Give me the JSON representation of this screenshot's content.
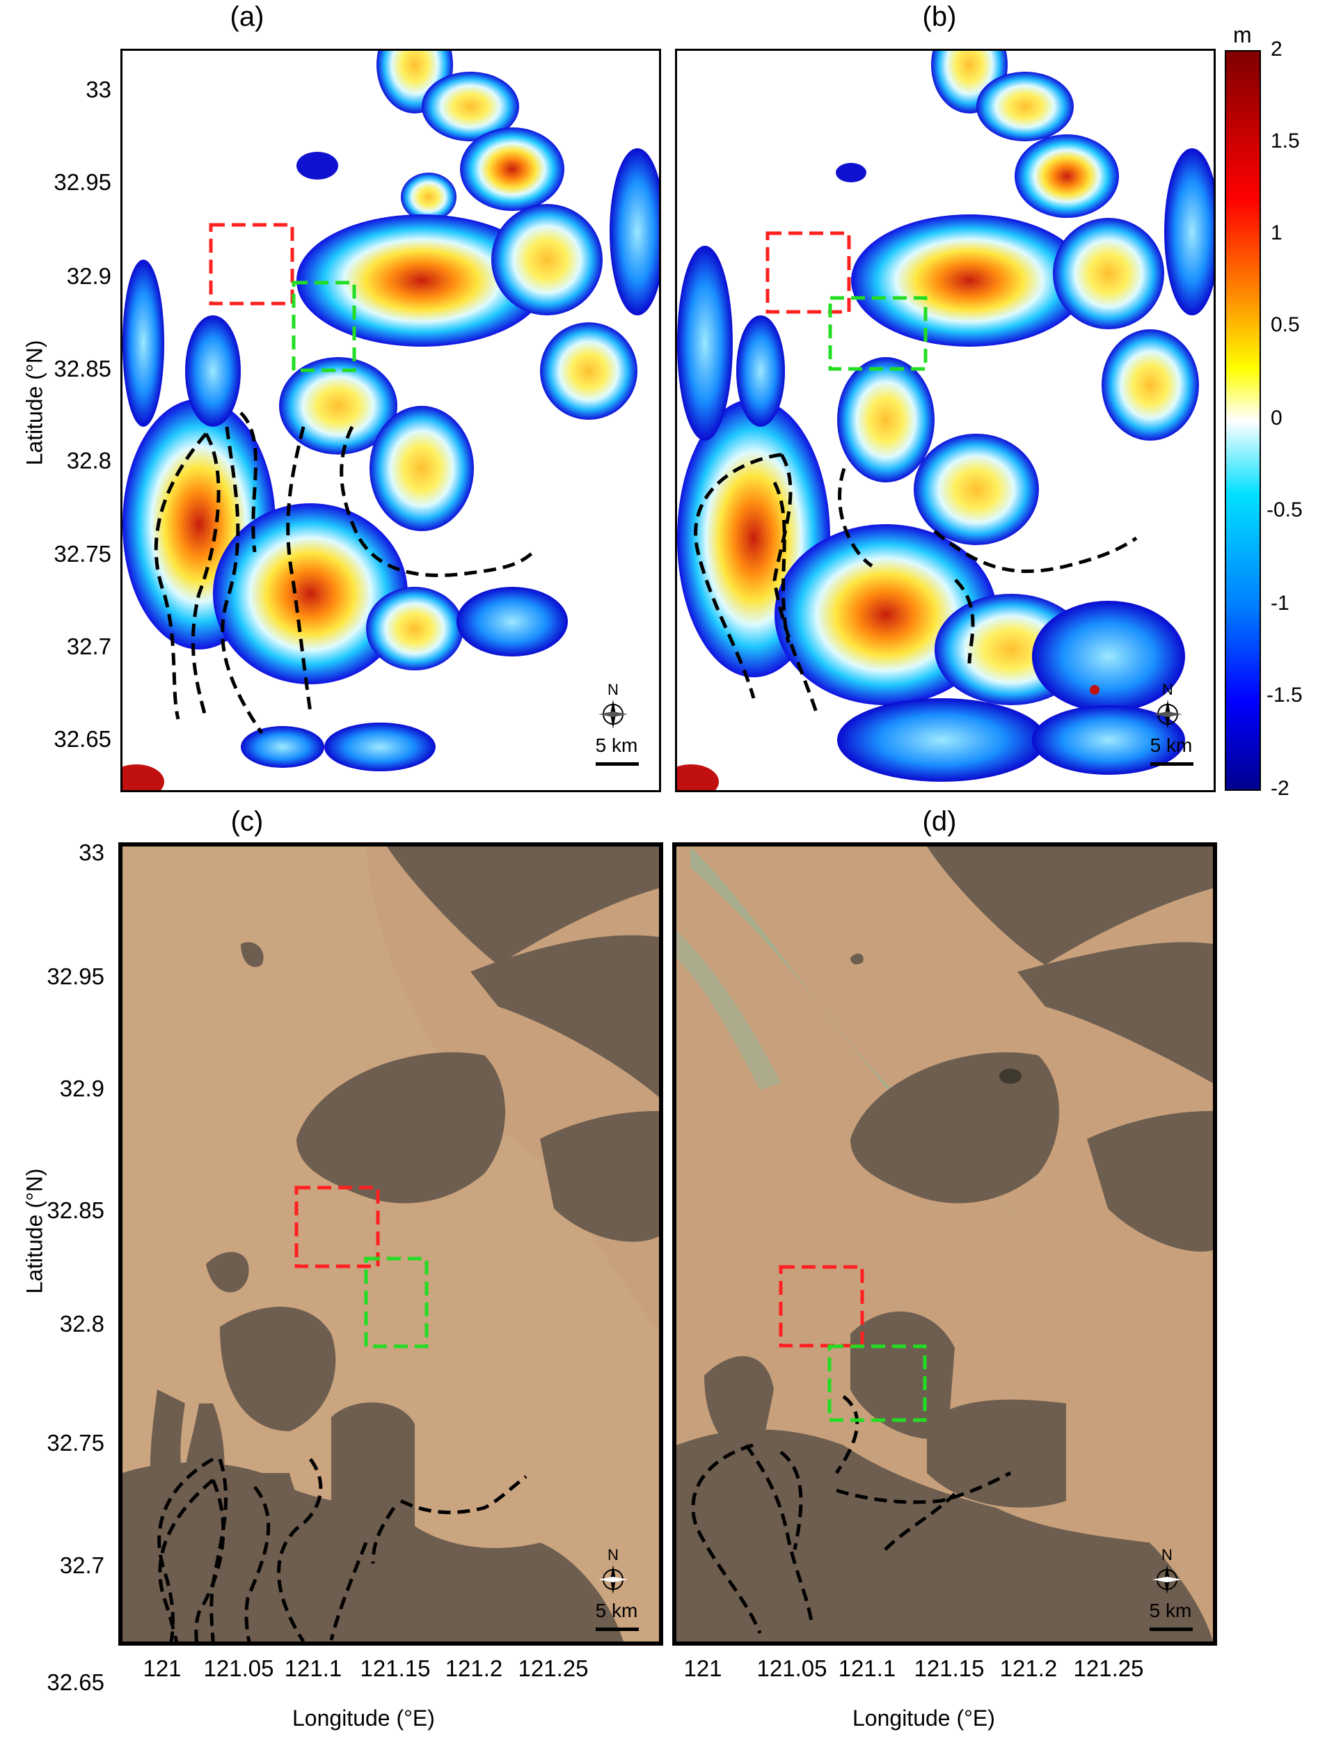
{
  "panels": [
    {
      "id": "a",
      "label": "(a)"
    },
    {
      "id": "b",
      "label": "(b)"
    },
    {
      "id": "c",
      "label": "(c)"
    },
    {
      "id": "d",
      "label": "(d)"
    }
  ],
  "axes": {
    "ylabel": "Latitude (°N)",
    "xlabel": "Longitude (°E)",
    "top_yticks": [
      "33",
      "32.95",
      "32.9",
      "32.85",
      "32.8",
      "32.75",
      "32.7",
      "32.65"
    ],
    "bottom_yticks": [
      "33",
      "32.95",
      "32.9",
      "32.85",
      "32.8",
      "32.75",
      "32.7",
      "32.65"
    ],
    "xticks": [
      "121",
      "121.05",
      "121.1",
      "121.15",
      "121.2",
      "121.25"
    ]
  },
  "colorbar": {
    "unit": "m",
    "ticks": [
      "2",
      "1.5",
      "1",
      "0.5",
      "0",
      "-0.5",
      "-1",
      "-1.5",
      "-2"
    ],
    "range": [
      -2,
      2
    ],
    "colors": [
      "#00008f",
      "#0000ff",
      "#00bfff",
      "#ffffff",
      "#ffff00",
      "#ff8000",
      "#ff0000",
      "#800000"
    ]
  },
  "map_annotations": {
    "scale_bar": "5 km",
    "north_arrow": "N",
    "red_box_color": "#ff2020",
    "green_box_color": "#22dd22"
  },
  "colors": {
    "water_sat": "#c9a37f",
    "flat_sat": "#6b5c4d",
    "elev_low": "#1a1aff",
    "elev_high": "#e02010"
  }
}
